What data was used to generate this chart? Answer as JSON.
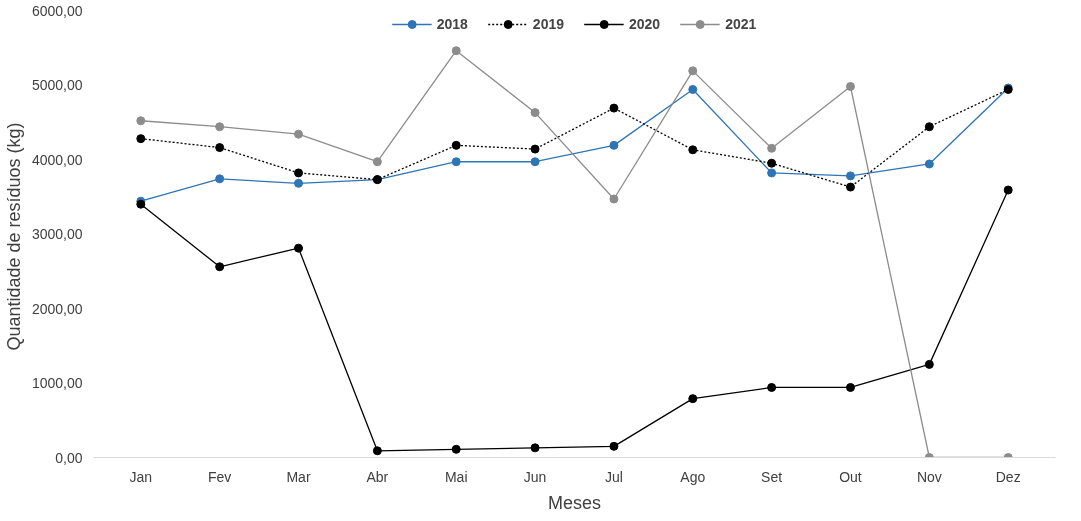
{
  "chart_data": {
    "type": "line",
    "xlabel": "Meses",
    "ylabel": "Quantidade de resíduos  (kg)",
    "categories": [
      "Jan",
      "Fev",
      "Mar",
      "Abr",
      "Mai",
      "Jun",
      "Jul",
      "Ago",
      "Set",
      "Out",
      "Nov",
      "Dez"
    ],
    "series": [
      {
        "name": "2018",
        "color": "#2e75b6",
        "line_style": "solid",
        "values": [
          3440,
          3740,
          3680,
          3730,
          3970,
          3970,
          4190,
          4940,
          3820,
          3780,
          3940,
          4960
        ]
      },
      {
        "name": "2019",
        "color": "#000000",
        "line_style": "dotted",
        "values": [
          4280,
          4160,
          3820,
          3730,
          4190,
          4140,
          4690,
          4130,
          3950,
          3630,
          4440,
          4940
        ]
      },
      {
        "name": "2020",
        "color": "#000000",
        "line_style": "solid",
        "values": [
          3400,
          2560,
          2810,
          90,
          110,
          130,
          150,
          790,
          940,
          940,
          1250,
          3590
        ]
      },
      {
        "name": "2021",
        "color": "#8c8c8c",
        "line_style": "solid",
        "values": [
          4520,
          4440,
          4340,
          3970,
          5460,
          4630,
          3470,
          5190,
          4150,
          4980,
          0,
          0
        ]
      }
    ],
    "ylim": [
      0,
      6000
    ],
    "yticks": [
      {
        "value": 0,
        "label": "0,00"
      },
      {
        "value": 1000,
        "label": "1000,00"
      },
      {
        "value": 2000,
        "label": "2000,00"
      },
      {
        "value": 3000,
        "label": "3000,00"
      },
      {
        "value": 4000,
        "label": "4000,00"
      },
      {
        "value": 5000,
        "label": "5000,00"
      },
      {
        "value": 6000,
        "label": "6000,00"
      }
    ],
    "grid": false,
    "legend": "top",
    "marker": "circle"
  }
}
